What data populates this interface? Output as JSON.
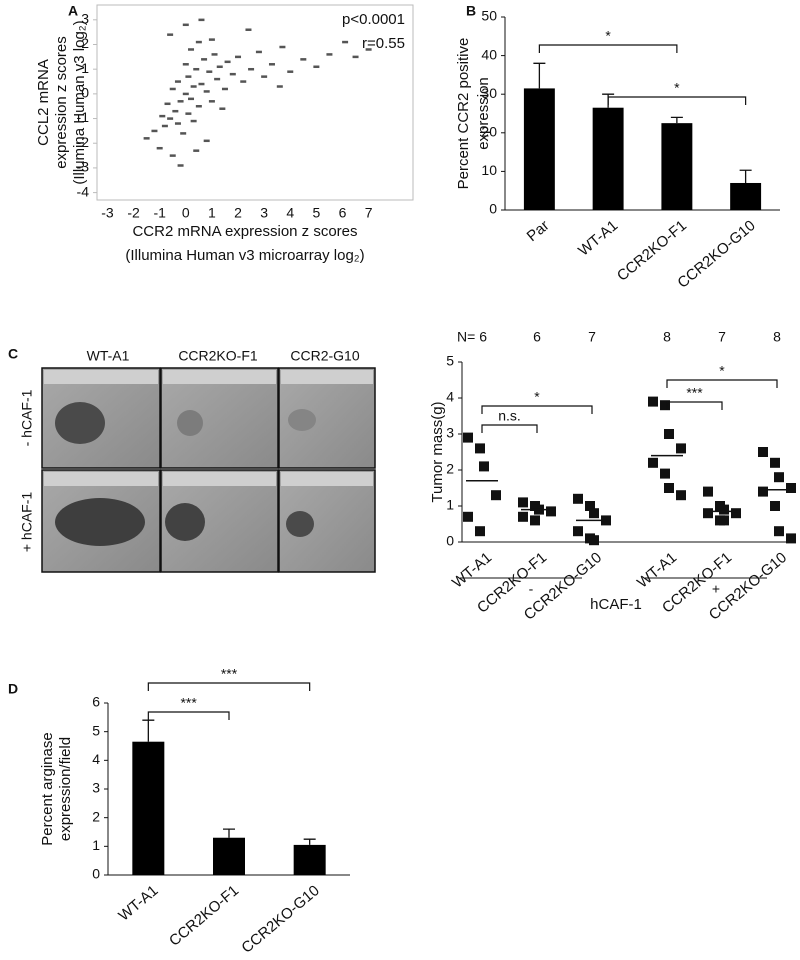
{
  "chart_data": [
    {
      "type": "scatter",
      "panel": "A",
      "ylabel": [
        "CCL2 mRNA",
        "expression z scores",
        "(Illumina Human v3 log₂)"
      ],
      "xlabel": [
        "CCR2 mRNA expression z scores",
        "(Illumina Human v3 microarray log₂)"
      ],
      "annotations": [
        "p<0.0001",
        "r=0.55"
      ],
      "x": [
        -1.5,
        -1.2,
        -1.0,
        -0.9,
        -0.8,
        -0.7,
        -0.6,
        -0.5,
        -0.5,
        -0.4,
        -0.3,
        -0.3,
        -0.2,
        -0.1,
        0,
        0,
        0.1,
        0.1,
        0.2,
        0.2,
        0.3,
        0.3,
        0.4,
        0.5,
        0.5,
        0.6,
        0.7,
        0.8,
        0.9,
        1.0,
        1.1,
        1.2,
        1.3,
        1.5,
        1.6,
        1.8,
        2.0,
        2.2,
        2.5,
        2.8,
        3.0,
        3.3,
        3.7,
        4.0,
        4.5,
        5.0,
        5.5,
        6.1,
        6.5,
        7.0,
        -0.2,
        0.4,
        0.8,
        1.4,
        -0.6,
        0.0,
        0.6,
        1.0,
        2.4,
        3.6
      ],
      "y": [
        -1.8,
        -1.5,
        -2.2,
        -0.9,
        -1.3,
        -0.4,
        -1.0,
        -2.5,
        0.2,
        -0.7,
        -1.2,
        0.5,
        -0.3,
        -1.6,
        0.0,
        1.2,
        -0.8,
        0.7,
        -0.2,
        1.8,
        0.3,
        -1.1,
        1.0,
        -0.5,
        2.1,
        0.4,
        1.4,
        0.1,
        0.9,
        -0.3,
        1.6,
        0.6,
        1.1,
        0.2,
        1.3,
        0.8,
        1.5,
        0.5,
        1.0,
        1.7,
        0.7,
        1.2,
        1.9,
        0.9,
        1.4,
        1.1,
        1.6,
        2.1,
        1.5,
        1.8,
        -2.9,
        -2.3,
        -1.9,
        -0.6,
        2.4,
        2.8,
        3.0,
        2.2,
        2.6,
        0.3
      ],
      "color": "#555555",
      "xlim": [
        -3.4,
        8.7
      ],
      "xticks": [
        -3,
        -2,
        -1,
        0,
        1,
        2,
        3,
        4,
        5,
        6,
        7
      ],
      "ylim": [
        -4.3,
        3.6
      ],
      "yticks": [
        -4,
        -3,
        -2,
        -1,
        0,
        1,
        2,
        3
      ]
    },
    {
      "type": "bar",
      "panel": "B",
      "ylabel": [
        "Percent CCR2 positive",
        "expression"
      ],
      "categories": [
        "Par",
        "WT-A1",
        "CCR2KO-F1",
        "CCR2KO-G10"
      ],
      "values": [
        31.5,
        26.5,
        22.5,
        7
      ],
      "errors": [
        6.5,
        3.5,
        1.5,
        3.3
      ],
      "color": "#000000",
      "ylim": [
        0,
        50
      ],
      "yticks": [
        0,
        10,
        20,
        30,
        40,
        50
      ],
      "brackets": [
        {
          "from": 0,
          "to": 2,
          "label": "*"
        },
        {
          "from": 1,
          "to": 3,
          "label": "*"
        }
      ]
    },
    {
      "type": "dot",
      "ylabel": [
        "Tumor mass(g)"
      ],
      "categories": [
        "WT-A1",
        "CCR2KO-F1",
        "CCR2KO-G10",
        "WT-A1",
        "CCR2KO-F1",
        "CCR2KO-G10"
      ],
      "n_labels": [
        "N= 6",
        "6",
        "7",
        "8",
        "7",
        "8"
      ],
      "points": [
        [
          2.9,
          2.6,
          2.1,
          1.3,
          0.7,
          0.3
        ],
        [
          1.1,
          1.0,
          0.9,
          0.85,
          0.7,
          0.6
        ],
        [
          1.2,
          1.0,
          0.8,
          0.6,
          0.3,
          0.1,
          0.05
        ],
        [
          3.9,
          3.8,
          3.0,
          2.6,
          2.2,
          1.9,
          1.5,
          1.3
        ],
        [
          1.4,
          1.0,
          0.9,
          0.8,
          0.8,
          0.6,
          0.6
        ],
        [
          2.5,
          2.2,
          1.8,
          1.5,
          1.4,
          1.0,
          0.3,
          0.1
        ]
      ],
      "means": [
        1.7,
        0.9,
        0.6,
        2.4,
        0.85,
        1.45
      ],
      "color": "#111111",
      "ylim": [
        0,
        5
      ],
      "yticks": [
        0,
        1,
        2,
        3,
        4,
        5
      ],
      "groups": [
        {
          "label": "-",
          "from": 0,
          "to": 2
        },
        {
          "label": "+",
          "from": 3,
          "to": 5
        }
      ],
      "group_title": "hCAF-1",
      "brackets": [
        {
          "from": 0,
          "to": 1,
          "label": "n.s."
        },
        {
          "from": 0,
          "to": 2,
          "label": "*"
        },
        {
          "from": 3,
          "to": 4,
          "label": "***"
        },
        {
          "from": 3,
          "to": 5,
          "label": "*"
        }
      ]
    },
    {
      "type": "bar",
      "panel": "D",
      "ylabel": [
        "Percent arginase",
        "expression/field"
      ],
      "categories": [
        "WT-A1",
        "CCR2KO-F1",
        "CCR2KO-G10"
      ],
      "values": [
        4.65,
        1.3,
        1.05
      ],
      "errors": [
        0.75,
        0.3,
        0.2
      ],
      "color": "#000000",
      "ylim": [
        0,
        6
      ],
      "yticks": [
        0,
        1,
        2,
        3,
        4,
        5,
        6
      ],
      "brackets": [
        {
          "from": 0,
          "to": 1,
          "label": "***"
        },
        {
          "from": 0,
          "to": 2,
          "label": "***"
        }
      ]
    }
  ],
  "photo_panel": {
    "panel": "C",
    "columns": [
      "WT-A1",
      "CCR2KO-F1",
      "CCR2-G10"
    ],
    "rows": [
      "- hCAF-1",
      "+ hCAF-1"
    ]
  }
}
